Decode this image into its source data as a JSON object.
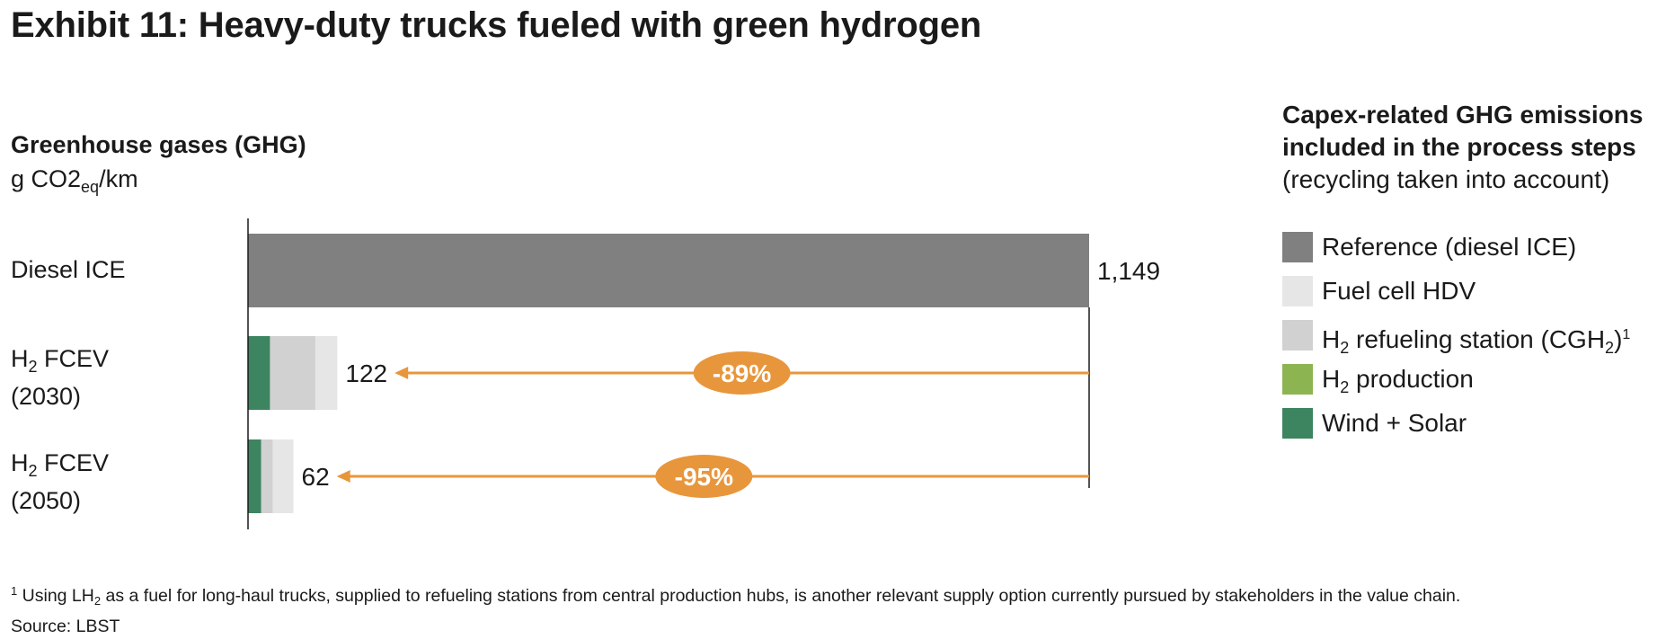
{
  "title": "Exhibit 11: Heavy-duty trucks fueled with green hydrogen",
  "y_title": "Greenhouse gases (GHG)",
  "unit": {
    "pre": "g CO2",
    "sub": "eq",
    "post": "/km"
  },
  "categories": [
    {
      "l1": "Diesel ICE",
      "l2": ""
    },
    {
      "l1_pre": "H",
      "l1_sub": "2",
      "l1_post": " FCEV",
      "l2": "(2030)"
    },
    {
      "l1_pre": "H",
      "l1_sub": "2",
      "l1_post": " FCEV",
      "l2": "(2050)"
    }
  ],
  "legend_title": {
    "bold1": "Capex-related GHG emissions",
    "bold2": "included in the process steps",
    "normal": "(recycling taken into account)"
  },
  "legend": [
    {
      "pre": "Reference (diesel ICE)",
      "sub": "",
      "mid": "",
      "sub2": "",
      "post": "",
      "sup": "",
      "color": "#808080"
    },
    {
      "pre": "Fuel cell HDV",
      "sub": "",
      "mid": "",
      "sub2": "",
      "post": "",
      "sup": "",
      "color": "#e6e6e6"
    },
    {
      "pre": "H",
      "sub": "2",
      "mid": " refueling station (CGH",
      "sub2": "2",
      "post": ")",
      "sup": "1",
      "color": "#d1d1d1"
    },
    {
      "pre": "H",
      "sub": "2",
      "mid": " production",
      "sub2": "",
      "post": "",
      "sup": "",
      "color": "#8cb552"
    },
    {
      "pre": "Wind + Solar",
      "sub": "",
      "mid": "",
      "sub2": "",
      "post": "",
      "sup": "",
      "color": "#3d8460"
    }
  ],
  "chart_data": {
    "type": "bar",
    "orientation": "horizontal",
    "stacked": true,
    "categories": [
      "Diesel ICE",
      "H2 FCEV (2030)",
      "H2 FCEV (2050)"
    ],
    "series": [
      {
        "name": "Reference (diesel ICE)",
        "values": [
          1149,
          0,
          0
        ]
      },
      {
        "name": "Wind + Solar",
        "values": [
          0,
          30,
          18
        ]
      },
      {
        "name": "H2 production",
        "values": [
          0,
          0,
          0
        ]
      },
      {
        "name": "H2 refueling station (CGH2)",
        "values": [
          0,
          62,
          16
        ]
      },
      {
        "name": "Fuel cell HDV",
        "values": [
          0,
          30,
          28
        ]
      }
    ],
    "totals": [
      "1,149",
      "122",
      "62"
    ],
    "reductions": [
      {
        "from": "Diesel ICE",
        "to": "H2 FCEV (2030)",
        "label": "-89%"
      },
      {
        "from": "Diesel ICE",
        "to": "H2 FCEV (2050)",
        "label": "-95%"
      }
    ],
    "xlim": [
      0,
      1149
    ],
    "grid": false,
    "legend_position": "right",
    "colors": {
      "reference": "#808080",
      "fuel_cell": "#e6e6e6",
      "refueling": "#d1d1d1",
      "h2_production": "#8cb552",
      "wind_solar": "#3d8460",
      "arrow": "#e8963c"
    }
  },
  "footnote": {
    "sup": "1",
    "pre": " Using LH",
    "sub": "2",
    "post": " as a fuel for long-haul trucks, supplied to refueling stations from central production hubs, is another relevant supply option currently pursued by stakeholders in the value chain.",
    "source": "Source: LBST"
  }
}
